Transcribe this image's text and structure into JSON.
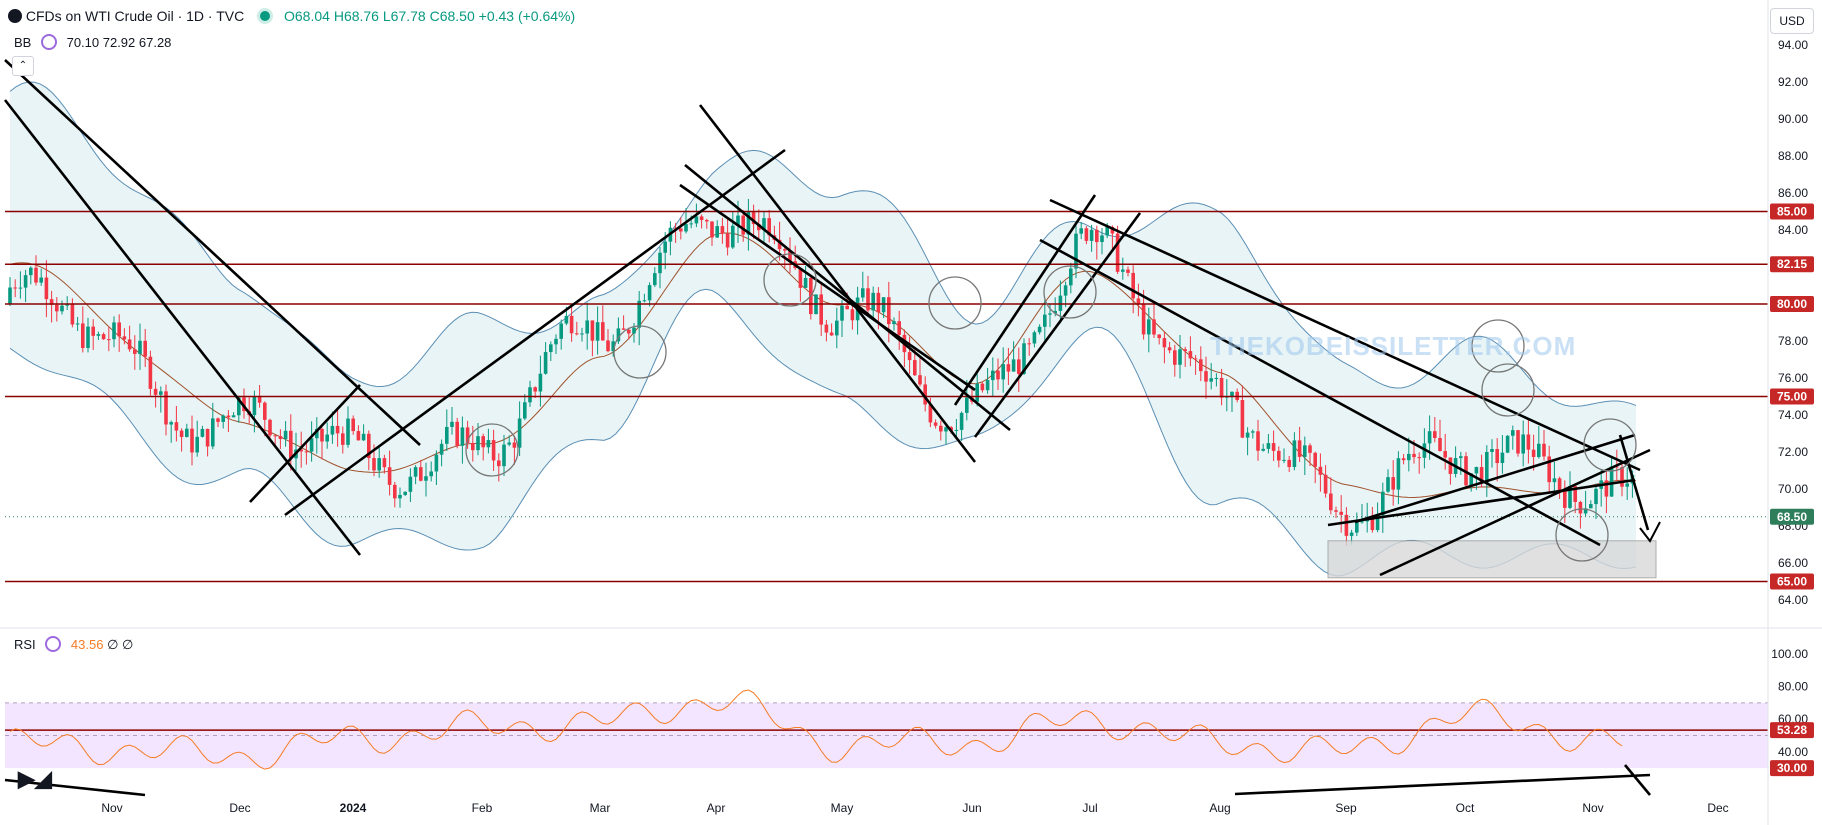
{
  "header": {
    "title": "CFDs on WTI Crude Oil · 1D · TVC",
    "open": "O68.04",
    "high": "H68.76",
    "low": "L67.78",
    "close": "C68.50",
    "change": "+0.43 (+0.64%)",
    "currency": "USD"
  },
  "bb_legend": {
    "name": "BB",
    "values": "70.10  72.92  67.28"
  },
  "rsi_legend": {
    "name": "RSI",
    "value": "43.56",
    "extra": "∅  ∅"
  },
  "watermark": "THEKOBEISSILETTER.COM",
  "colors": {
    "up": "#089981",
    "down": "#f23645",
    "level": "#8b0000",
    "bb_band": "#5b8fb5",
    "bb_fill": "#e8f4f5",
    "bb_basis": "#a0522d",
    "rsi_line": "#f57c24",
    "rsi_band": "#f3e5ff",
    "gray_zone": "#d9d9d9",
    "price_label": "#c62828",
    "current_label": "#2e7d5b"
  },
  "chart_data": [
    {
      "type": "candlestick",
      "title": "CFDs on WTI Crude Oil · 1D · TVC",
      "y_axis": {
        "ticks": [
          "94.00",
          "92.00",
          "90.00",
          "88.00",
          "86.00",
          "84.00",
          "82.00",
          "80.00",
          "78.00",
          "76.00",
          "74.00",
          "72.00",
          "70.00",
          "68.00",
          "66.00",
          "64.00"
        ],
        "ylim": [
          63,
          96
        ]
      },
      "x_axis": {
        "ticks": [
          "Nov",
          "Dec",
          "2024",
          "Feb",
          "Mar",
          "Apr",
          "May",
          "Jun",
          "Jul",
          "Aug",
          "Sep",
          "Oct",
          "Nov",
          "Dec"
        ]
      },
      "horizontal_levels": [
        "85.00",
        "82.15",
        "80.00",
        "75.00",
        "65.00"
      ],
      "current_price": "68.50",
      "series": [
        {
          "name": "BB",
          "x": [
            "Nov",
            "Dec",
            "2024",
            "Feb",
            "Mar",
            "Apr",
            "May",
            "Jun",
            "Jul",
            "Aug",
            "Sep",
            "Oct",
            "Nov"
          ],
          "basis": [
            82,
            74,
            71,
            72,
            77,
            84,
            80,
            76,
            82,
            76,
            70,
            70,
            70
          ],
          "upper": [
            91,
            82,
            76,
            78,
            80,
            88,
            86,
            80,
            85,
            84,
            76,
            78,
            73
          ],
          "lower": [
            78,
            70,
            67,
            68,
            73,
            80,
            75,
            72,
            78,
            70,
            66,
            66,
            67
          ]
        },
        {
          "name": "Close",
          "x": [
            "Nov",
            "Dec",
            "2024",
            "Feb",
            "Mar",
            "Apr",
            "May",
            "Jun",
            "Jul",
            "Aug",
            "Sep",
            "Oct",
            "Nov"
          ],
          "values": [
            80,
            74,
            71,
            73,
            78,
            86,
            79,
            75,
            82,
            76,
            68,
            73,
            68.5
          ]
        }
      ]
    },
    {
      "type": "line",
      "title": "RSI",
      "y_axis": {
        "ticks": [
          "100.00",
          "80.00",
          "60.00",
          "40.00"
        ],
        "ylim": [
          28,
          104
        ]
      },
      "levels": [
        "53.28",
        "30.00"
      ],
      "series": [
        {
          "name": "RSI",
          "x": [
            "Nov",
            "Dec",
            "2024",
            "Feb",
            "Mar",
            "Apr",
            "May",
            "Jun",
            "Jul",
            "Aug",
            "Sep",
            "Oct",
            "Nov"
          ],
          "values": [
            45,
            38,
            48,
            55,
            58,
            72,
            44,
            46,
            60,
            45,
            40,
            62,
            43.56
          ]
        }
      ]
    }
  ]
}
